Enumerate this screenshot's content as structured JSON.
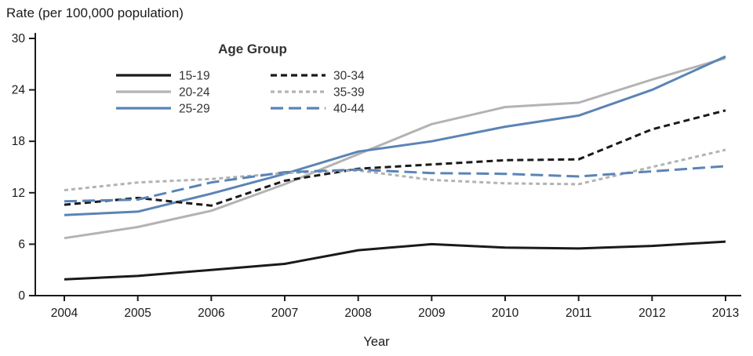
{
  "chart_data": {
    "type": "line",
    "title": "",
    "ylabel": "Rate (per 100,000 population)",
    "xlabel": "Year",
    "ylim": [
      0,
      30
    ],
    "yticks": [
      0,
      6,
      12,
      18,
      24,
      30
    ],
    "grid": false,
    "legend_title": "Age Group",
    "legend_position": "top-left-inside",
    "categories": [
      "2004",
      "2005",
      "2006",
      "2007",
      "2008",
      "2009",
      "2010",
      "2011",
      "2012",
      "2013"
    ],
    "series": [
      {
        "name": "15-19",
        "color": "#1a1a1a",
        "dash": "none",
        "values": [
          1.9,
          2.3,
          3.0,
          3.7,
          5.3,
          6.0,
          5.6,
          5.5,
          5.8,
          6.3
        ]
      },
      {
        "name": "20-24",
        "color": "#b3b3b3",
        "dash": "none",
        "values": [
          6.7,
          8.0,
          9.9,
          13.0,
          16.5,
          20.0,
          22.0,
          22.5,
          25.2,
          27.7
        ]
      },
      {
        "name": "25-29",
        "color": "#5b84b5",
        "dash": "none",
        "values": [
          9.4,
          9.8,
          11.9,
          14.2,
          16.8,
          18.0,
          19.7,
          21.0,
          24.0,
          27.9
        ]
      },
      {
        "name": "30-34",
        "color": "#1a1a1a",
        "dash": "medium",
        "values": [
          10.6,
          11.4,
          10.5,
          13.4,
          14.8,
          15.3,
          15.8,
          15.9,
          19.4,
          21.6
        ]
      },
      {
        "name": "35-39",
        "color": "#b3b3b3",
        "dash": "small",
        "values": [
          12.3,
          13.2,
          13.6,
          14.3,
          14.6,
          13.5,
          13.1,
          13.0,
          15.0,
          17.0
        ]
      },
      {
        "name": "40-44",
        "color": "#5b84b5",
        "dash": "large",
        "values": [
          11.0,
          11.2,
          13.2,
          14.4,
          14.7,
          14.3,
          14.2,
          13.9,
          14.5,
          15.1
        ]
      }
    ]
  }
}
